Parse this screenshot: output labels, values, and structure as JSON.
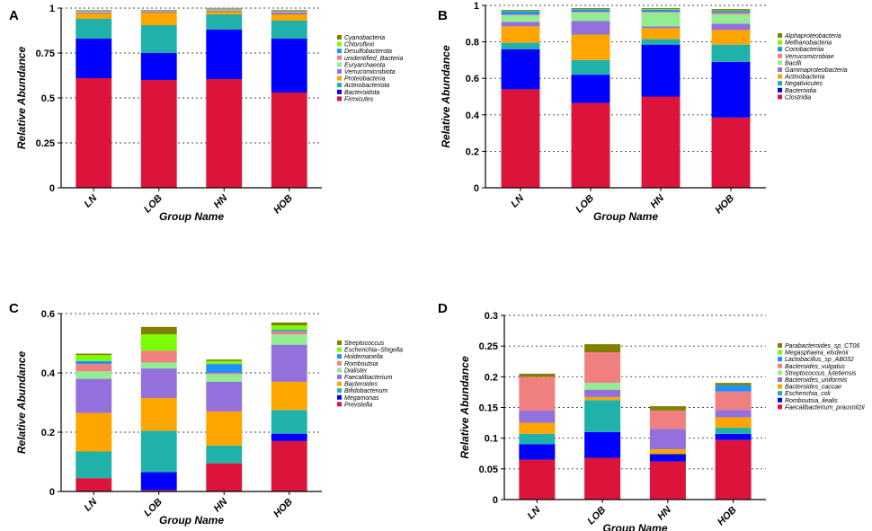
{
  "colors": {
    "Firmicutes": "#dc143c",
    "Bacteroidota": "#0000ff",
    "Actinobacteriota": "#20b2aa",
    "Proteobacteria": "#ffa500",
    "Verrucomicrobiota": "#9370db",
    "Euryarchaeota": "#90ee90",
    "unidentified_Bacteria": "#f08080",
    "Desulfobacterota": "#1e90ff",
    "Chloroflexi": "#7cfc00",
    "Cyanobacteria": "#808000",
    "Clostridia": "#dc143c",
    "Bacteroidia": "#0000ff",
    "Negativicutes": "#20b2aa",
    "Actinobacteria": "#ffa500",
    "Gammaproteobacteria": "#9370db",
    "Bacilli": "#90ee90",
    "Verrucomicrobiae": "#f08080",
    "Coriobacteriia": "#1e90ff",
    "Methanobacteria": "#7cfc00",
    "Alphaproteobacteria": "#808000",
    "Prevotella": "#dc143c",
    "Megamonas": "#0000ff",
    "Bifidobacterium": "#20b2aa",
    "Bacteroides": "#ffa500",
    "Faecalibacterium": "#9370db",
    "Dialister": "#90ee90",
    "Romboutsia": "#f08080",
    "Holdemanella": "#1e90ff",
    "Escherichia-Shigella": "#7cfc00",
    "Streptococcus": "#808000",
    "Faecalibacterium_prausnitzii": "#dc143c",
    "Romboutsia_ilealis": "#0000ff",
    "Escherichia_coli": "#20b2aa",
    "Bacteroides_caccae": "#ffa500",
    "Bacteroides_uniformis": "#9370db",
    "Streptococcus_lutetiensis": "#90ee90",
    "Bacteroides_vulgatus": "#f08080",
    "Lactobacillus_sp_AB032": "#1e90ff",
    "Megasphaera_elsdenii": "#7cfc00",
    "Parabacteroides_sp_CT06": "#808000"
  },
  "chart_data": [
    {
      "panel": "A",
      "type": "bar",
      "stacked": true,
      "categories": [
        "LN",
        "LOB",
        "HN",
        "HOB"
      ],
      "xlabel": "Group Name",
      "ylabel": "Relative  Abundance",
      "ylim": [
        0,
        1
      ],
      "yticks": [
        0,
        0.25,
        0.5,
        0.75,
        1
      ],
      "ytick_labels": [
        "0",
        "0.25",
        "0.5",
        "0.75",
        "1"
      ],
      "legend_order": [
        "Cyanobacteria",
        "Chloroflexi",
        "Desulfobacterota",
        "unidentified_Bacteria",
        "Euryarchaeota",
        "Verrucomicrobiota",
        "Proteobacteria",
        "Actinobacteriota",
        "Bacteroidota",
        "Firmicutes"
      ],
      "series": [
        {
          "name": "Firmicutes",
          "values": [
            0.61,
            0.6,
            0.605,
            0.53
          ]
        },
        {
          "name": "Bacteroidota",
          "values": [
            0.22,
            0.15,
            0.275,
            0.3
          ]
        },
        {
          "name": "Actinobacteriota",
          "values": [
            0.11,
            0.155,
            0.085,
            0.1
          ]
        },
        {
          "name": "Proteobacteria",
          "values": [
            0.03,
            0.07,
            0.015,
            0.035
          ]
        },
        {
          "name": "Verrucomicrobiota",
          "values": [
            0.005,
            0.005,
            0.005,
            0.01
          ]
        },
        {
          "name": "Euryarchaeota",
          "values": [
            0.004,
            0.002,
            0.004,
            0.003
          ]
        },
        {
          "name": "unidentified_Bacteria",
          "values": [
            0.004,
            0.003,
            0.005,
            0.004
          ]
        },
        {
          "name": "Desulfobacterota",
          "values": [
            0.003,
            0.002,
            0.003,
            0.003
          ]
        },
        {
          "name": "Chloroflexi",
          "values": [
            0.002,
            0.001,
            0.002,
            0.002
          ]
        },
        {
          "name": "Cyanobacteria",
          "values": [
            0.002,
            0.002,
            0.002,
            0.003
          ]
        }
      ]
    },
    {
      "panel": "B",
      "type": "bar",
      "stacked": true,
      "categories": [
        "LN",
        "LOB",
        "HN",
        "HOB"
      ],
      "xlabel": "Group Name",
      "ylabel": "Relative  Abundance",
      "ylim": [
        0,
        1
      ],
      "yticks": [
        0,
        0.2,
        0.4,
        0.6,
        0.8,
        1
      ],
      "ytick_labels": [
        "0",
        "0.2",
        "0.4",
        "0.6",
        "0.8",
        "1"
      ],
      "legend_order": [
        "Alphaproteobacteria",
        "Methanobacteria",
        "Coriobacteriia",
        "Verrucomicrobiae",
        "Bacilli",
        "Gammaproteobacteria",
        "Actinobacteria",
        "Negativicutes",
        "Bacteroidia",
        "Clostridia"
      ],
      "series": [
        {
          "name": "Clostridia",
          "values": [
            0.54,
            0.465,
            0.5,
            0.385
          ]
        },
        {
          "name": "Bacteroidia",
          "values": [
            0.22,
            0.155,
            0.285,
            0.305
          ]
        },
        {
          "name": "Negativicutes",
          "values": [
            0.035,
            0.08,
            0.03,
            0.095
          ]
        },
        {
          "name": "Actinobacteria",
          "values": [
            0.09,
            0.14,
            0.06,
            0.08
          ]
        },
        {
          "name": "Gammaproteobacteria",
          "values": [
            0.025,
            0.075,
            0.01,
            0.035
          ]
        },
        {
          "name": "Bacilli",
          "values": [
            0.035,
            0.045,
            0.075,
            0.05
          ]
        },
        {
          "name": "Verrucomicrobiae",
          "values": [
            0.005,
            0.005,
            0.005,
            0.01
          ]
        },
        {
          "name": "Coriobacteriia",
          "values": [
            0.018,
            0.013,
            0.012,
            0.01
          ]
        },
        {
          "name": "Methanobacteria",
          "values": [
            0.002,
            0.002,
            0.003,
            0.003
          ]
        },
        {
          "name": "Alphaproteobacteria",
          "values": [
            0.005,
            0.005,
            0.005,
            0.007
          ]
        }
      ]
    },
    {
      "panel": "C",
      "type": "bar",
      "stacked": true,
      "categories": [
        "LN",
        "LOB",
        "HN",
        "HOB"
      ],
      "xlabel": "Group Name",
      "ylabel": "Relative  Abundance",
      "ylim": [
        0,
        0.6
      ],
      "yticks": [
        0,
        0.2,
        0.4,
        0.6
      ],
      "ytick_labels": [
        "0",
        "0.2",
        "0.4",
        "0.6"
      ],
      "legend_order": [
        "Streptococcus",
        "Escherichia–Shigella",
        "Holdemanella",
        "Romboutsia",
        "Dialister",
        "Faecalibacterium",
        "Bacteroides",
        "Bifidobacterium",
        "Megamonas",
        "Prevotella"
      ],
      "series": [
        {
          "name": "Prevotella",
          "values": [
            0.045,
            0.005,
            0.095,
            0.17
          ]
        },
        {
          "name": "Megamonas",
          "values": [
            0.0,
            0.06,
            0.0,
            0.025
          ]
        },
        {
          "name": "Bifidobacterium",
          "values": [
            0.09,
            0.14,
            0.06,
            0.08
          ]
        },
        {
          "name": "Bacteroides",
          "values": [
            0.13,
            0.11,
            0.115,
            0.095
          ]
        },
        {
          "name": "Faecalibacterium",
          "values": [
            0.115,
            0.1,
            0.1,
            0.125
          ]
        },
        {
          "name": "Dialister",
          "values": [
            0.025,
            0.02,
            0.025,
            0.035
          ]
        },
        {
          "name": "Romboutsia",
          "values": [
            0.025,
            0.04,
            0.005,
            0.01
          ]
        },
        {
          "name": "Holdemanella",
          "values": [
            0.01,
            0.0,
            0.03,
            0.005
          ]
        },
        {
          "name": "Escherichia–Shigella",
          "values": [
            0.02,
            0.055,
            0.01,
            0.015
          ]
        },
        {
          "name": "Streptococcus",
          "values": [
            0.005,
            0.025,
            0.005,
            0.01
          ]
        }
      ]
    },
    {
      "panel": "D",
      "type": "bar",
      "stacked": true,
      "categories": [
        "LN",
        "LOB",
        "HN",
        "HOB"
      ],
      "xlabel": "Group Name",
      "ylabel": "Relative  Abundance",
      "ylim": [
        0,
        0.3
      ],
      "yticks": [
        0,
        0.05,
        0.1,
        0.15,
        0.2,
        0.25,
        0.3
      ],
      "ytick_labels": [
        "0",
        "0.05",
        "0.1",
        "0.15",
        "0.2",
        "0.25",
        "0.3"
      ],
      "legend_order": [
        "Parabacteroides_sp_CT06",
        "Megasphaera_elsdenii",
        "Lactobacillus_sp_AB032",
        "Bacteroides_vulgatus",
        "Streptococcus_lutetiensis",
        "Bacteroides_uniformis",
        "Bacteroides_caccae",
        "Escherichia_coli",
        "Romboutsia_ilealis",
        "Faecalibacterium_prausnitzii"
      ],
      "series": [
        {
          "name": "Faecalibacterium_prausnitzii",
          "values": [
            0.065,
            0.068,
            0.062,
            0.097
          ]
        },
        {
          "name": "Romboutsia_ilealis",
          "values": [
            0.025,
            0.042,
            0.012,
            0.01
          ]
        },
        {
          "name": "Escherichia_coli",
          "values": [
            0.017,
            0.052,
            0.0,
            0.01
          ]
        },
        {
          "name": "Bacteroides_caccae",
          "values": [
            0.018,
            0.005,
            0.008,
            0.017
          ]
        },
        {
          "name": "Bacteroides_uniformis",
          "values": [
            0.02,
            0.012,
            0.033,
            0.012
          ]
        },
        {
          "name": "Streptococcus_lutetiensis",
          "values": [
            0.0,
            0.011,
            0.0,
            0.0
          ]
        },
        {
          "name": "Bacteroides_vulgatus",
          "values": [
            0.055,
            0.05,
            0.03,
            0.03
          ]
        },
        {
          "name": "Lactobacillus_sp_AB032",
          "values": [
            0.0,
            0.0,
            0.0,
            0.01
          ]
        },
        {
          "name": "Megasphaera_elsdenii",
          "values": [
            0.0,
            0.0,
            0.0,
            0.0
          ]
        },
        {
          "name": "Parabacteroides_sp_CT06",
          "values": [
            0.005,
            0.013,
            0.007,
            0.004
          ]
        }
      ]
    }
  ]
}
